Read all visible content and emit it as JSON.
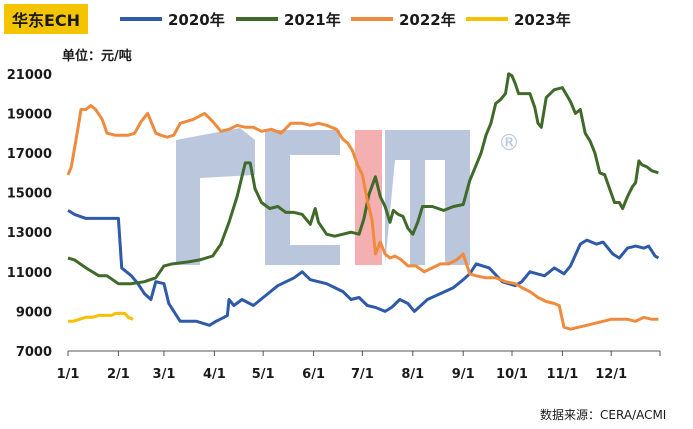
{
  "title": "华东ECH",
  "unit_label": "单位：元/吨",
  "source": "数据来源：CERA/ACMI",
  "watermark": "ACMI",
  "colors": {
    "2020": "#2e5aa8",
    "2021": "#3f6a2a",
    "2022": "#f08a3c",
    "2023": "#f7c000",
    "title_bg": "#f5c400"
  },
  "chart_data": {
    "type": "line",
    "title": "华东ECH",
    "ylabel": "单位：元/吨",
    "ylim": [
      7000,
      21800
    ],
    "y_ticks": [
      7000,
      9000,
      11000,
      13000,
      15000,
      17000,
      19000,
      21000
    ],
    "xlim": [
      1,
      365
    ],
    "x_ticks": [
      {
        "label": "1/1",
        "day": 1
      },
      {
        "label": "2/1",
        "day": 32
      },
      {
        "label": "3/1",
        "day": 60
      },
      {
        "label": "4/1",
        "day": 91
      },
      {
        "label": "5/1",
        "day": 121
      },
      {
        "label": "6/1",
        "day": 152
      },
      {
        "label": "7/1",
        "day": 182
      },
      {
        "label": "8/1",
        "day": 213
      },
      {
        "label": "9/1",
        "day": 244
      },
      {
        "label": "10/1",
        "day": 274
      },
      {
        "label": "11/1",
        "day": 305
      },
      {
        "label": "12/1",
        "day": 335
      }
    ],
    "grid": false,
    "legend": "top",
    "series": [
      {
        "name": "2020年",
        "points": [
          [
            1,
            14100
          ],
          [
            5,
            13900
          ],
          [
            12,
            13700
          ],
          [
            20,
            13700
          ],
          [
            32,
            13700
          ],
          [
            34,
            11200
          ],
          [
            40,
            10800
          ],
          [
            44,
            10400
          ],
          [
            48,
            9900
          ],
          [
            52,
            9600
          ],
          [
            55,
            10500
          ],
          [
            60,
            10400
          ],
          [
            63,
            9400
          ],
          [
            70,
            8500
          ],
          [
            80,
            8500
          ],
          [
            88,
            8300
          ],
          [
            92,
            8500
          ],
          [
            97,
            8700
          ],
          [
            99,
            8800
          ],
          [
            100,
            9600
          ],
          [
            103,
            9300
          ],
          [
            108,
            9600
          ],
          [
            115,
            9300
          ],
          [
            121,
            9700
          ],
          [
            130,
            10300
          ],
          [
            140,
            10700
          ],
          [
            145,
            11000
          ],
          [
            150,
            10600
          ],
          [
            160,
            10400
          ],
          [
            165,
            10200
          ],
          [
            170,
            10000
          ],
          [
            175,
            9600
          ],
          [
            180,
            9700
          ],
          [
            185,
            9300
          ],
          [
            190,
            9200
          ],
          [
            196,
            9000
          ],
          [
            200,
            9200
          ],
          [
            205,
            9600
          ],
          [
            210,
            9400
          ],
          [
            214,
            9000
          ],
          [
            218,
            9300
          ],
          [
            222,
            9600
          ],
          [
            230,
            9900
          ],
          [
            238,
            10200
          ],
          [
            244,
            10600
          ],
          [
            248,
            10900
          ],
          [
            252,
            11400
          ],
          [
            260,
            11200
          ],
          [
            268,
            10500
          ],
          [
            276,
            10300
          ],
          [
            280,
            10500
          ],
          [
            285,
            11000
          ],
          [
            294,
            10800
          ],
          [
            300,
            11200
          ],
          [
            306,
            10900
          ],
          [
            310,
            11300
          ],
          [
            316,
            12400
          ],
          [
            320,
            12600
          ],
          [
            326,
            12400
          ],
          [
            330,
            12500
          ],
          [
            336,
            11900
          ],
          [
            340,
            11700
          ],
          [
            345,
            12200
          ],
          [
            350,
            12300
          ],
          [
            355,
            12200
          ],
          [
            358,
            12300
          ],
          [
            362,
            11800
          ],
          [
            364,
            11700
          ]
        ]
      },
      {
        "name": "2021年",
        "points": [
          [
            1,
            11700
          ],
          [
            5,
            11600
          ],
          [
            12,
            11200
          ],
          [
            20,
            10800
          ],
          [
            25,
            10800
          ],
          [
            32,
            10400
          ],
          [
            40,
            10400
          ],
          [
            48,
            10500
          ],
          [
            55,
            10700
          ],
          [
            60,
            11300
          ],
          [
            65,
            11400
          ],
          [
            75,
            11500
          ],
          [
            82,
            11600
          ],
          [
            90,
            11800
          ],
          [
            95,
            12400
          ],
          [
            100,
            13500
          ],
          [
            105,
            14800
          ],
          [
            110,
            16500
          ],
          [
            113,
            16500
          ],
          [
            116,
            15200
          ],
          [
            120,
            14500
          ],
          [
            125,
            14200
          ],
          [
            130,
            14300
          ],
          [
            135,
            14000
          ],
          [
            140,
            14000
          ],
          [
            145,
            13900
          ],
          [
            150,
            13400
          ],
          [
            153,
            14200
          ],
          [
            155,
            13500
          ],
          [
            160,
            12900
          ],
          [
            165,
            12800
          ],
          [
            170,
            12900
          ],
          [
            175,
            13000
          ],
          [
            180,
            12900
          ],
          [
            183,
            13700
          ],
          [
            186,
            14900
          ],
          [
            190,
            15800
          ],
          [
            193,
            14800
          ],
          [
            196,
            14300
          ],
          [
            199,
            13500
          ],
          [
            201,
            14100
          ],
          [
            204,
            13900
          ],
          [
            207,
            13800
          ],
          [
            210,
            13200
          ],
          [
            213,
            12900
          ],
          [
            216,
            13500
          ],
          [
            219,
            14300
          ],
          [
            222,
            14300
          ],
          [
            225,
            14300
          ],
          [
            232,
            14100
          ],
          [
            238,
            14300
          ],
          [
            244,
            14400
          ],
          [
            248,
            15600
          ],
          [
            252,
            16400
          ],
          [
            255,
            17000
          ],
          [
            258,
            17900
          ],
          [
            261,
            18500
          ],
          [
            264,
            19500
          ],
          [
            267,
            19700
          ],
          [
            270,
            20000
          ],
          [
            272,
            21000
          ],
          [
            274,
            20900
          ],
          [
            276,
            20500
          ],
          [
            278,
            20000
          ],
          [
            285,
            20000
          ],
          [
            288,
            19300
          ],
          [
            290,
            18500
          ],
          [
            292,
            18300
          ],
          [
            295,
            19800
          ],
          [
            300,
            20200
          ],
          [
            305,
            20300
          ],
          [
            310,
            19600
          ],
          [
            313,
            19000
          ],
          [
            316,
            19200
          ],
          [
            319,
            18000
          ],
          [
            322,
            17600
          ],
          [
            325,
            17000
          ],
          [
            328,
            16000
          ],
          [
            331,
            15900
          ],
          [
            334,
            15200
          ],
          [
            337,
            14500
          ],
          [
            340,
            14500
          ],
          [
            342,
            14200
          ],
          [
            345,
            14800
          ],
          [
            348,
            15300
          ],
          [
            350,
            15500
          ],
          [
            352,
            16600
          ],
          [
            354,
            16400
          ],
          [
            357,
            16300
          ],
          [
            360,
            16100
          ],
          [
            364,
            16000
          ]
        ]
      },
      {
        "name": "2022年",
        "points": [
          [
            1,
            15900
          ],
          [
            3,
            16300
          ],
          [
            7,
            18200
          ],
          [
            9,
            19200
          ],
          [
            12,
            19200
          ],
          [
            15,
            19400
          ],
          [
            18,
            19200
          ],
          [
            22,
            18700
          ],
          [
            25,
            18000
          ],
          [
            30,
            17900
          ],
          [
            35,
            17900
          ],
          [
            38,
            17900
          ],
          [
            42,
            18000
          ],
          [
            46,
            18600
          ],
          [
            50,
            19000
          ],
          [
            55,
            18000
          ],
          [
            58,
            17900
          ],
          [
            62,
            17800
          ],
          [
            66,
            17900
          ],
          [
            70,
            18500
          ],
          [
            78,
            18700
          ],
          [
            85,
            19000
          ],
          [
            90,
            18600
          ],
          [
            95,
            18100
          ],
          [
            100,
            18200
          ],
          [
            105,
            18400
          ],
          [
            110,
            18300
          ],
          [
            115,
            18300
          ],
          [
            120,
            18100
          ],
          [
            126,
            18200
          ],
          [
            132,
            18000
          ],
          [
            138,
            18500
          ],
          [
            145,
            18500
          ],
          [
            150,
            18400
          ],
          [
            155,
            18500
          ],
          [
            160,
            18400
          ],
          [
            166,
            18200
          ],
          [
            170,
            17700
          ],
          [
            173,
            17500
          ],
          [
            176,
            17100
          ],
          [
            179,
            16400
          ],
          [
            182,
            15900
          ],
          [
            185,
            14600
          ],
          [
            188,
            13600
          ],
          [
            190,
            11900
          ],
          [
            193,
            12500
          ],
          [
            196,
            11900
          ],
          [
            199,
            11700
          ],
          [
            202,
            11800
          ],
          [
            206,
            11600
          ],
          [
            210,
            11300
          ],
          [
            215,
            11300
          ],
          [
            220,
            11000
          ],
          [
            225,
            11200
          ],
          [
            230,
            11400
          ],
          [
            235,
            11400
          ],
          [
            240,
            11600
          ],
          [
            244,
            11900
          ],
          [
            248,
            10900
          ],
          [
            252,
            10800
          ],
          [
            258,
            10700
          ],
          [
            264,
            10700
          ],
          [
            270,
            10500
          ],
          [
            276,
            10400
          ],
          [
            280,
            10200
          ],
          [
            285,
            10000
          ],
          [
            290,
            9700
          ],
          [
            295,
            9500
          ],
          [
            300,
            9400
          ],
          [
            303,
            9300
          ],
          [
            306,
            8200
          ],
          [
            310,
            8100
          ],
          [
            315,
            8200
          ],
          [
            320,
            8300
          ],
          [
            325,
            8400
          ],
          [
            330,
            8500
          ],
          [
            335,
            8600
          ],
          [
            340,
            8600
          ],
          [
            345,
            8600
          ],
          [
            350,
            8500
          ],
          [
            355,
            8700
          ],
          [
            360,
            8600
          ],
          [
            364,
            8600
          ]
        ]
      },
      {
        "name": "2023年",
        "points": [
          [
            1,
            8500
          ],
          [
            4,
            8500
          ],
          [
            8,
            8600
          ],
          [
            12,
            8700
          ],
          [
            16,
            8700
          ],
          [
            20,
            8800
          ],
          [
            24,
            8800
          ],
          [
            28,
            8800
          ],
          [
            30,
            8900
          ],
          [
            33,
            8900
          ],
          [
            36,
            8900
          ],
          [
            38,
            8700
          ],
          [
            41,
            8600
          ]
        ]
      }
    ]
  }
}
